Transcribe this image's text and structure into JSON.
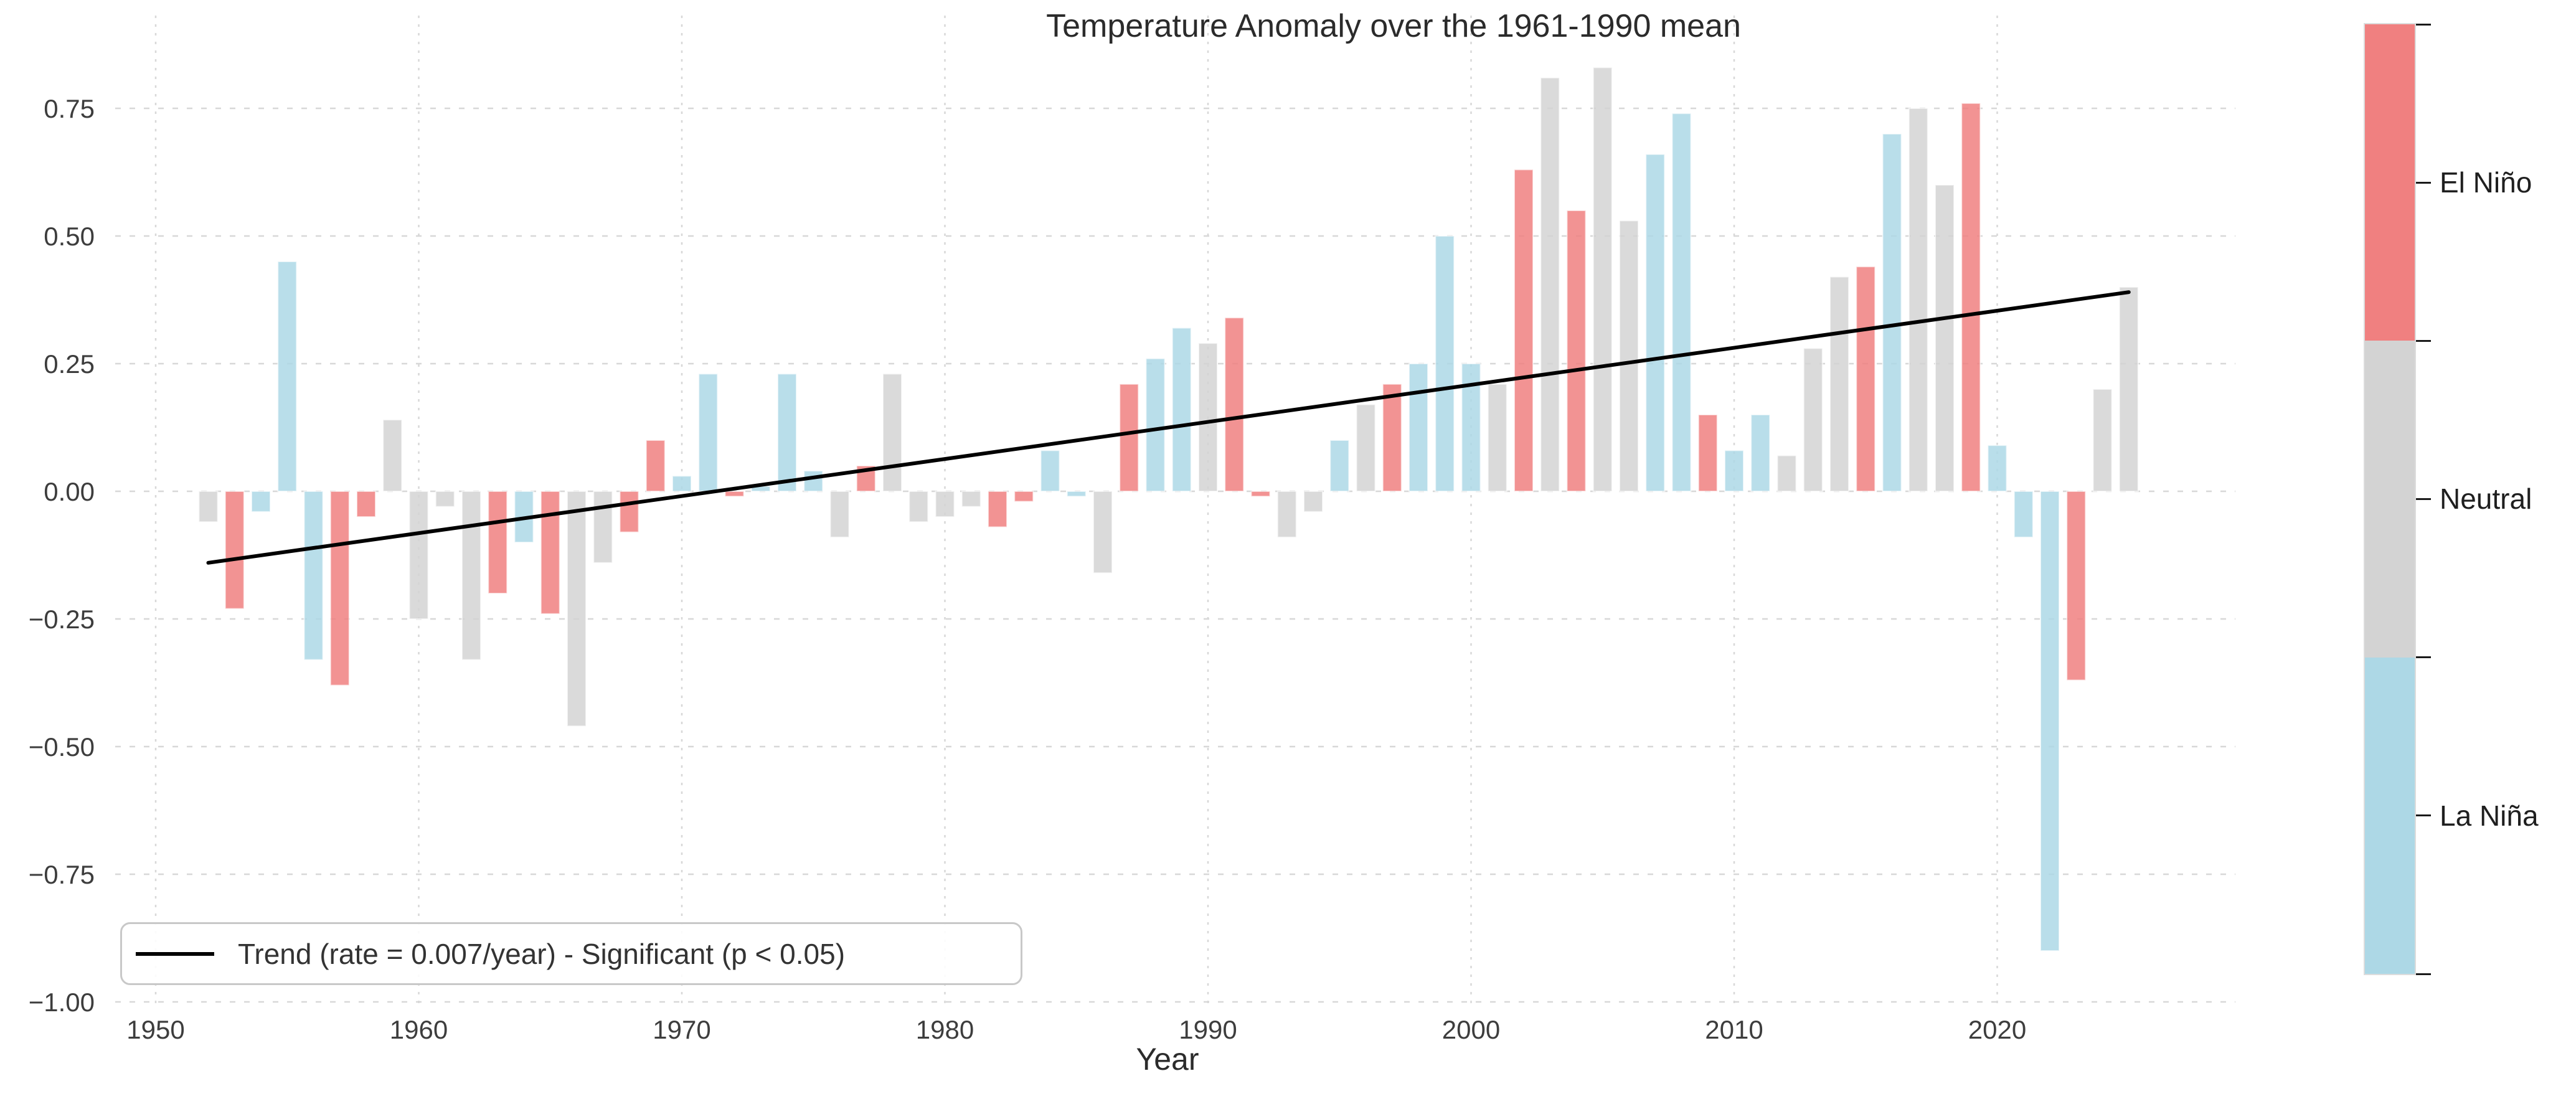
{
  "title": "Temperature Anomaly over the 1961-1990 mean",
  "legend": {
    "label": "Trend (rate = 0.007/year) - Significant (p < 0.05)"
  },
  "colorbar": {
    "labels": [
      "El Niño",
      "Neutral",
      "La Niña"
    ],
    "colors": [
      "#F08080",
      "#D3D3D3",
      "#ADD8E6"
    ]
  },
  "colors": {
    "el_nino": "#F08080",
    "neutral": "#D3D3D3",
    "la_nina": "#ADD8E6",
    "trend_line": "#000000",
    "grid": "#d8d8d8",
    "tick_text": "#3d3d3d"
  },
  "chart_data": {
    "type": "bar",
    "title": "Temperature Anomaly over the 1961-1990 mean",
    "xlabel": "Year",
    "ylabel": "",
    "grid": true,
    "legend_position": "lower left",
    "xlim": [
      1948.4,
      2028.5
    ],
    "ylim": [
      -1.02,
      0.9
    ],
    "x_ticks": [
      1950,
      1960,
      1970,
      1980,
      1990,
      2000,
      2010,
      2020
    ],
    "y_ticks": [
      {
        "value": 0.75,
        "label": "0.75"
      },
      {
        "value": 0.5,
        "label": "0.50"
      },
      {
        "value": 0.25,
        "label": "0.25"
      },
      {
        "value": 0.0,
        "label": "0.00"
      },
      {
        "value": -0.25,
        "label": "−0.25"
      },
      {
        "value": -0.5,
        "label": "−0.50"
      },
      {
        "value": -0.75,
        "label": "−0.75"
      },
      {
        "value": -1.0,
        "label": "−1.00"
      }
    ],
    "bar_color_map": {
      "El Niño": "#F08080",
      "Neutral": "#D3D3D3",
      "La Niña": "#ADD8E6"
    },
    "trend_line": {
      "x_start": 1952,
      "y_start": -0.14,
      "x_end": 2025,
      "y_end": 0.39,
      "rate": 0.007,
      "significant": true
    },
    "points": [
      {
        "year": 1952,
        "value": -0.06,
        "phase": "Neutral"
      },
      {
        "year": 1953,
        "value": -0.23,
        "phase": "El Niño"
      },
      {
        "year": 1954,
        "value": -0.04,
        "phase": "La Niña"
      },
      {
        "year": 1955,
        "value": 0.45,
        "phase": "La Niña"
      },
      {
        "year": 1956,
        "value": -0.33,
        "phase": "La Niña"
      },
      {
        "year": 1957,
        "value": -0.38,
        "phase": "El Niño"
      },
      {
        "year": 1958,
        "value": -0.05,
        "phase": "El Niño"
      },
      {
        "year": 1959,
        "value": 0.14,
        "phase": "Neutral"
      },
      {
        "year": 1960,
        "value": -0.25,
        "phase": "Neutral"
      },
      {
        "year": 1961,
        "value": -0.03,
        "phase": "Neutral"
      },
      {
        "year": 1962,
        "value": -0.33,
        "phase": "Neutral"
      },
      {
        "year": 1963,
        "value": -0.2,
        "phase": "El Niño"
      },
      {
        "year": 1964,
        "value": -0.1,
        "phase": "La Niña"
      },
      {
        "year": 1965,
        "value": -0.24,
        "phase": "El Niño"
      },
      {
        "year": 1966,
        "value": -0.46,
        "phase": "Neutral"
      },
      {
        "year": 1967,
        "value": -0.14,
        "phase": "Neutral"
      },
      {
        "year": 1968,
        "value": -0.08,
        "phase": "El Niño"
      },
      {
        "year": 1969,
        "value": 0.1,
        "phase": "El Niño"
      },
      {
        "year": 1970,
        "value": 0.03,
        "phase": "La Niña"
      },
      {
        "year": 1971,
        "value": 0.23,
        "phase": "La Niña"
      },
      {
        "year": 1972,
        "value": -0.01,
        "phase": "El Niño"
      },
      {
        "year": 1973,
        "value": 0.01,
        "phase": "La Niña"
      },
      {
        "year": 1974,
        "value": 0.23,
        "phase": "La Niña"
      },
      {
        "year": 1975,
        "value": 0.04,
        "phase": "La Niña"
      },
      {
        "year": 1976,
        "value": -0.09,
        "phase": "Neutral"
      },
      {
        "year": 1977,
        "value": 0.05,
        "phase": "El Niño"
      },
      {
        "year": 1978,
        "value": 0.23,
        "phase": "Neutral"
      },
      {
        "year": 1979,
        "value": -0.06,
        "phase": "Neutral"
      },
      {
        "year": 1980,
        "value": -0.05,
        "phase": "Neutral"
      },
      {
        "year": 1981,
        "value": -0.03,
        "phase": "Neutral"
      },
      {
        "year": 1982,
        "value": -0.07,
        "phase": "El Niño"
      },
      {
        "year": 1983,
        "value": -0.02,
        "phase": "El Niño"
      },
      {
        "year": 1984,
        "value": 0.08,
        "phase": "La Niña"
      },
      {
        "year": 1985,
        "value": -0.01,
        "phase": "La Niña"
      },
      {
        "year": 1986,
        "value": -0.16,
        "phase": "Neutral"
      },
      {
        "year": 1987,
        "value": 0.21,
        "phase": "El Niño"
      },
      {
        "year": 1988,
        "value": 0.26,
        "phase": "La Niña"
      },
      {
        "year": 1989,
        "value": 0.32,
        "phase": "La Niña"
      },
      {
        "year": 1990,
        "value": 0.29,
        "phase": "Neutral"
      },
      {
        "year": 1991,
        "value": 0.34,
        "phase": "El Niño"
      },
      {
        "year": 1992,
        "value": -0.01,
        "phase": "El Niño"
      },
      {
        "year": 1993,
        "value": -0.09,
        "phase": "Neutral"
      },
      {
        "year": 1994,
        "value": -0.04,
        "phase": "Neutral"
      },
      {
        "year": 1995,
        "value": 0.1,
        "phase": "La Niña"
      },
      {
        "year": 1996,
        "value": 0.17,
        "phase": "Neutral"
      },
      {
        "year": 1997,
        "value": 0.21,
        "phase": "El Niño"
      },
      {
        "year": 1998,
        "value": 0.25,
        "phase": "La Niña"
      },
      {
        "year": 1999,
        "value": 0.5,
        "phase": "La Niña"
      },
      {
        "year": 2000,
        "value": 0.25,
        "phase": "La Niña"
      },
      {
        "year": 2001,
        "value": 0.21,
        "phase": "Neutral"
      },
      {
        "year": 2002,
        "value": 0.63,
        "phase": "El Niño"
      },
      {
        "year": 2003,
        "value": 0.81,
        "phase": "Neutral"
      },
      {
        "year": 2004,
        "value": 0.55,
        "phase": "El Niño"
      },
      {
        "year": 2005,
        "value": 0.83,
        "phase": "Neutral"
      },
      {
        "year": 2006,
        "value": 0.53,
        "phase": "Neutral"
      },
      {
        "year": 2007,
        "value": 0.66,
        "phase": "La Niña"
      },
      {
        "year": 2008,
        "value": 0.74,
        "phase": "La Niña"
      },
      {
        "year": 2009,
        "value": 0.15,
        "phase": "El Niño"
      },
      {
        "year": 2010,
        "value": 0.08,
        "phase": "La Niña"
      },
      {
        "year": 2011,
        "value": 0.15,
        "phase": "La Niña"
      },
      {
        "year": 2012,
        "value": 0.07,
        "phase": "Neutral"
      },
      {
        "year": 2013,
        "value": 0.28,
        "phase": "Neutral"
      },
      {
        "year": 2014,
        "value": 0.42,
        "phase": "Neutral"
      },
      {
        "year": 2015,
        "value": 0.44,
        "phase": "El Niño"
      },
      {
        "year": 2016,
        "value": 0.7,
        "phase": "La Niña"
      },
      {
        "year": 2017,
        "value": 0.75,
        "phase": "Neutral"
      },
      {
        "year": 2018,
        "value": 0.6,
        "phase": "Neutral"
      },
      {
        "year": 2019,
        "value": 0.76,
        "phase": "El Niño"
      },
      {
        "year": 2020,
        "value": 0.09,
        "phase": "La Niña"
      },
      {
        "year": 2021,
        "value": -0.09,
        "phase": "La Niña"
      },
      {
        "year": 2022,
        "value": -0.9,
        "phase": "La Niña"
      },
      {
        "year": 2023,
        "value": -0.37,
        "phase": "El Niño"
      },
      {
        "year": 2024,
        "value": 0.2,
        "phase": "Neutral"
      },
      {
        "year": 2025,
        "value": 0.4,
        "phase": "Neutral"
      }
    ]
  }
}
